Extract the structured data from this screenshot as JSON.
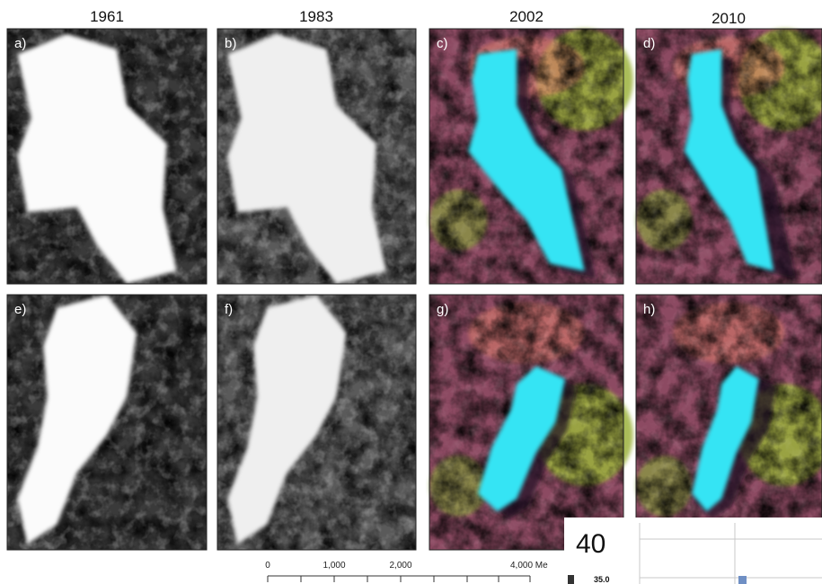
{
  "headers": [
    "1961",
    "1983",
    "2002",
    "2010"
  ],
  "panels": [
    "a)",
    "b)",
    "c)",
    "d)",
    "e)",
    "f)",
    "g)",
    "h)"
  ],
  "scale_bar": {
    "labels": [
      "0",
      "1,000",
      "2,000",
      "4,000 Me"
    ]
  },
  "inset": {
    "big_tick": "40",
    "small_tick": "35.0"
  }
}
